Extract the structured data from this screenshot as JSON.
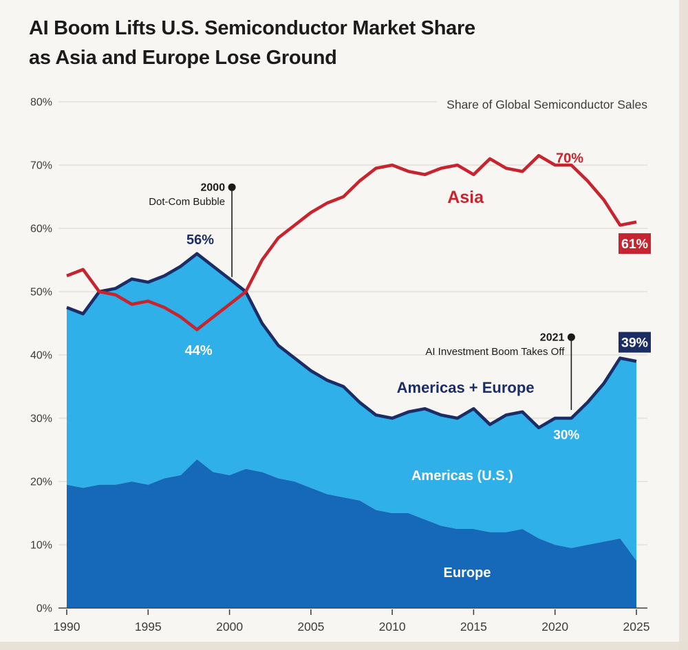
{
  "title": {
    "line1": "AI Boom Lifts U.S. Semiconductor Market Share",
    "line2": "as Asia and Europe Lose Ground"
  },
  "subtitle": "Share of Global Semiconductor Sales",
  "colors": {
    "background": "#f8f6f2",
    "edge": "#e5dfd4",
    "title_text": "#1b1b1b",
    "subtitle_text": "#3c3c3c",
    "axis_text": "#3c3c3c",
    "axis_line": "#444240",
    "gridline": "#dedad2",
    "asia_red": "#c6242e",
    "navy": "#1b2d64",
    "americas_cyan": "#2fb0e8",
    "europe_blue": "#1569b8",
    "annotation_text": "#1b1b1b",
    "white": "#ffffff"
  },
  "chart_data": {
    "type": "area",
    "title": "AI Boom Lifts U.S. Semiconductor Market Share as Asia and Europe Lose Ground",
    "subtitle": "Share of Global Semiconductor Sales",
    "unit": "percent share of global semiconductor sales",
    "grid": true,
    "ylim": [
      0,
      80
    ],
    "y_ticks": [
      0,
      10,
      20,
      30,
      40,
      50,
      60,
      70,
      80
    ],
    "x_ticks": [
      1990,
      1995,
      2000,
      2005,
      2010,
      2015,
      2020,
      2025
    ],
    "x": [
      1990,
      1991,
      1992,
      1993,
      1994,
      1995,
      1996,
      1997,
      1998,
      1999,
      2000,
      2001,
      2002,
      2003,
      2004,
      2005,
      2006,
      2007,
      2008,
      2009,
      2010,
      2011,
      2012,
      2013,
      2014,
      2015,
      2016,
      2017,
      2018,
      2019,
      2020,
      2021,
      2022,
      2023,
      2024,
      2025
    ],
    "series": [
      {
        "name": "Asia",
        "kind": "line",
        "color_key": "asia_red",
        "values": [
          52.5,
          53.5,
          50,
          49.5,
          48,
          48.5,
          47.5,
          46,
          44,
          46,
          48,
          50,
          55,
          58.5,
          60.5,
          62.5,
          64,
          65,
          67.5,
          69.5,
          70,
          69,
          68.5,
          69.5,
          70,
          68.5,
          71,
          69.5,
          69,
          71.5,
          70,
          70,
          67.5,
          64.5,
          60.5,
          61
        ]
      },
      {
        "name": "Americas + Europe",
        "kind": "line",
        "color_key": "navy",
        "values": [
          47.5,
          46.5,
          50,
          50.5,
          52,
          51.5,
          52.5,
          54,
          56,
          54,
          52,
          50,
          45,
          41.5,
          39.5,
          37.5,
          36,
          35,
          32.5,
          30.5,
          30,
          31,
          31.5,
          30.5,
          30,
          31.5,
          29,
          30.5,
          31,
          28.5,
          30,
          30,
          32.5,
          35.5,
          39.5,
          39
        ]
      },
      {
        "name": "Americas (U.S.)",
        "kind": "stacked-area",
        "color_key": "americas_cyan",
        "values": [
          28,
          27.5,
          30.5,
          31,
          32,
          32,
          32,
          33,
          32.5,
          32.5,
          31,
          28,
          23.5,
          21,
          19.5,
          18.5,
          18,
          17.5,
          15.5,
          15,
          15,
          16,
          17.5,
          17.5,
          17.5,
          19,
          17,
          18.5,
          18.5,
          17.5,
          20,
          20.5,
          22.5,
          25,
          28.5,
          31.5
        ]
      },
      {
        "name": "Europe",
        "kind": "stacked-area",
        "color_key": "europe_blue",
        "values": [
          19.5,
          19,
          19.5,
          19.5,
          20,
          19.5,
          20.5,
          21,
          23.5,
          21.5,
          21,
          22,
          21.5,
          20.5,
          20,
          19,
          18,
          17.5,
          17,
          15.5,
          15,
          15,
          14,
          13,
          12.5,
          12.5,
          12,
          12,
          12.5,
          11,
          10,
          9.5,
          10,
          10.5,
          11,
          7.5
        ]
      }
    ],
    "annotations": [
      {
        "title": "2000",
        "text": "Dot-Com Bubble",
        "year": 2000.15,
        "dot_pct": 66.5,
        "line_end_pct": 52.3
      },
      {
        "title": "2021",
        "text": "AI Investment Boom Takes Off",
        "year": 2021,
        "dot_pct": 42.8,
        "line_end_pct": 31.3
      }
    ],
    "point_labels": [
      {
        "text": "56%",
        "year": 1998.2,
        "pct": 57.5,
        "color_key": "navy",
        "font_size": 20
      },
      {
        "text": "44%",
        "year": 1998.1,
        "pct": 40,
        "color_key": "white",
        "font_size": 20
      },
      {
        "text": "70%",
        "year": 2020.9,
        "pct": 70.4,
        "color_key": "asia_red",
        "font_size": 20
      },
      {
        "text": "30%",
        "year": 2020.7,
        "pct": 26.7,
        "color_key": "white",
        "font_size": 19
      }
    ],
    "series_labels": [
      {
        "text": "Asia",
        "year": 2014.5,
        "pct": 64,
        "color_key": "asia_red",
        "font_size": 25
      },
      {
        "text": "Americas + Europe",
        "year": 2014.5,
        "pct": 34,
        "color_key": "navy",
        "font_size": 22
      },
      {
        "text": "Americas (U.S.)",
        "year": 2014.3,
        "pct": 20.2,
        "color_key": "white",
        "font_size": 20
      },
      {
        "text": "Europe",
        "year": 2014.6,
        "pct": 4.9,
        "color_key": "white",
        "font_size": 20
      }
    ],
    "end_labels": [
      {
        "text": "61%",
        "bg_color_key": "asia_red",
        "pct": 57.6
      },
      {
        "text": "39%",
        "bg_color_key": "navy",
        "pct": 42
      }
    ]
  }
}
